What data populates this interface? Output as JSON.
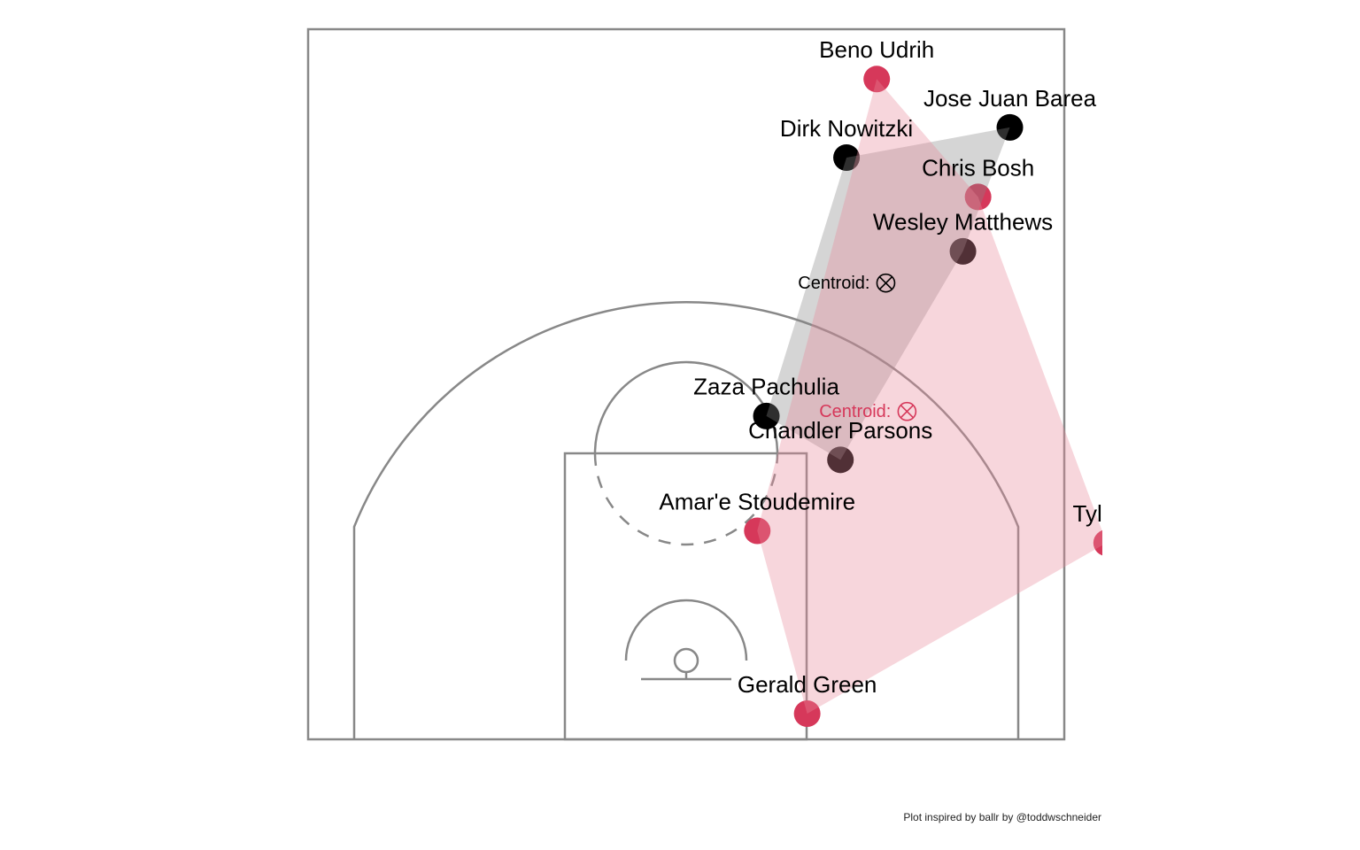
{
  "chart_data": {
    "type": "scatter",
    "xlim": [
      -27.5,
      27.5
    ],
    "ylim": [
      0,
      47
    ],
    "caption": "Plot inspired by ballr by @toddwschneider",
    "series": [
      {
        "color": "#000000",
        "hull_color": "#888888",
        "labels": [
          "Jose Juan Barea",
          "Dirk Nowitzki",
          "Wesley Matthews",
          "Zaza Pachulia",
          "Chandler Parsons"
        ],
        "x": [
          21.4,
          10.6,
          18.3,
          5.3,
          10.2
        ],
        "y": [
          40.5,
          38.5,
          32.3,
          21.4,
          18.5
        ],
        "centroid_label": "Centroid:",
        "centroid_x": 13.2,
        "centroid_y": 30.2
      },
      {
        "color": "#d6385a",
        "hull_color": "#e8899c",
        "labels": [
          "Beno Udrih",
          "Chris Bosh",
          "Amar'e Stoudemire",
          "Gerald Green",
          "Tyler J"
        ],
        "x": [
          12.6,
          19.3,
          4.7,
          8.0,
          27.8
        ],
        "y": [
          43.7,
          35.9,
          13.8,
          1.7,
          13.0
        ],
        "centroid_label": "Centroid:",
        "centroid_x": 14.6,
        "centroid_y": 21.7
      }
    ]
  }
}
